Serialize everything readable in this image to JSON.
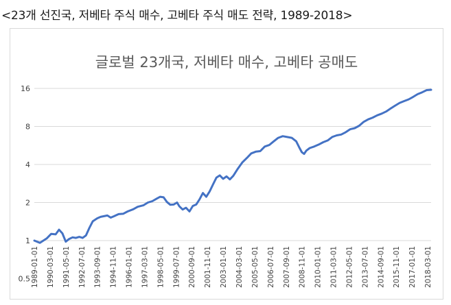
{
  "caption": "<23개 선진국, 저베타 주식 매수, 고베타 주식 매도 전략, 1989-2018>",
  "chart_data": {
    "type": "line",
    "title": "글로벌 23개국, 저베타 매수, 고베타 공매도",
    "xlabel": "",
    "ylabel": "",
    "y_scale": "log2",
    "ylim": [
      0.5,
      16
    ],
    "y_ticks": [
      "16",
      "8",
      "4",
      "2",
      "1",
      "0.5"
    ],
    "x_ticks": [
      "1989-01-01",
      "1990-03-01",
      "1991-05-01",
      "1992-07-01",
      "1993-09-01",
      "1994-11-01",
      "1996-01-01",
      "1997-03-01",
      "1998-05-01",
      "1999-07-01",
      "2000-09-01",
      "2001-11-01",
      "2003-01-01",
      "2004-03-01",
      "2005-05-01",
      "2006-07-01",
      "2007-09-01",
      "2008-11-01",
      "2010-01-01",
      "2011-03-01",
      "2012-05-01",
      "2013-07-01",
      "2014-09-01",
      "2015-11-01",
      "2017-01-01",
      "2018-03-01"
    ],
    "grid": true,
    "series": [
      {
        "color": "#4472c4",
        "points": [
          [
            "1989-01",
            1.0
          ],
          [
            "1989-06",
            0.96
          ],
          [
            "1989-12",
            1.04
          ],
          [
            "1990-04",
            1.13
          ],
          [
            "1990-08",
            1.12
          ],
          [
            "1990-11",
            1.22
          ],
          [
            "1991-02",
            1.14
          ],
          [
            "1991-05",
            0.98
          ],
          [
            "1991-08",
            1.03
          ],
          [
            "1991-11",
            1.06
          ],
          [
            "1992-02",
            1.05
          ],
          [
            "1992-05",
            1.07
          ],
          [
            "1992-08",
            1.05
          ],
          [
            "1992-11",
            1.1
          ],
          [
            "1993-02",
            1.26
          ],
          [
            "1993-05",
            1.42
          ],
          [
            "1993-09",
            1.5
          ],
          [
            "1993-12",
            1.54
          ],
          [
            "1994-03",
            1.56
          ],
          [
            "1994-06",
            1.58
          ],
          [
            "1994-09",
            1.52
          ],
          [
            "1994-12",
            1.56
          ],
          [
            "1995-04",
            1.62
          ],
          [
            "1995-08",
            1.63
          ],
          [
            "1995-12",
            1.7
          ],
          [
            "1996-05",
            1.77
          ],
          [
            "1996-09",
            1.85
          ],
          [
            "1997-02",
            1.9
          ],
          [
            "1997-06",
            2.0
          ],
          [
            "1997-10",
            2.05
          ],
          [
            "1998-02",
            2.15
          ],
          [
            "1998-05",
            2.22
          ],
          [
            "1998-08",
            2.2
          ],
          [
            "1998-11",
            2.02
          ],
          [
            "1999-02",
            1.92
          ],
          [
            "1999-05",
            1.93
          ],
          [
            "1999-08",
            2.0
          ],
          [
            "1999-10",
            1.87
          ],
          [
            "2000-01",
            1.76
          ],
          [
            "2000-04",
            1.82
          ],
          [
            "2000-07",
            1.7
          ],
          [
            "2000-10",
            1.88
          ],
          [
            "2001-01",
            1.93
          ],
          [
            "2001-04",
            2.12
          ],
          [
            "2001-07",
            2.38
          ],
          [
            "2001-10",
            2.22
          ],
          [
            "2002-01",
            2.45
          ],
          [
            "2002-04",
            2.78
          ],
          [
            "2002-07",
            3.15
          ],
          [
            "2002-10",
            3.28
          ],
          [
            "2003-01",
            3.08
          ],
          [
            "2003-04",
            3.22
          ],
          [
            "2003-07",
            3.05
          ],
          [
            "2003-10",
            3.25
          ],
          [
            "2004-02",
            3.7
          ],
          [
            "2004-06",
            4.15
          ],
          [
            "2004-10",
            4.5
          ],
          [
            "2005-02",
            4.9
          ],
          [
            "2005-06",
            5.05
          ],
          [
            "2005-10",
            5.1
          ],
          [
            "2006-02",
            5.55
          ],
          [
            "2006-06",
            5.7
          ],
          [
            "2006-10",
            6.1
          ],
          [
            "2007-02",
            6.5
          ],
          [
            "2007-06",
            6.7
          ],
          [
            "2007-10",
            6.6
          ],
          [
            "2008-02",
            6.5
          ],
          [
            "2008-06",
            6.1
          ],
          [
            "2008-09",
            5.4
          ],
          [
            "2008-11",
            5.0
          ],
          [
            "2009-01",
            4.85
          ],
          [
            "2009-03",
            5.15
          ],
          [
            "2009-06",
            5.4
          ],
          [
            "2009-10",
            5.55
          ],
          [
            "2010-02",
            5.75
          ],
          [
            "2010-06",
            6.0
          ],
          [
            "2010-10",
            6.2
          ],
          [
            "2011-02",
            6.6
          ],
          [
            "2011-06",
            6.8
          ],
          [
            "2011-10",
            6.9
          ],
          [
            "2012-02",
            7.2
          ],
          [
            "2012-06",
            7.6
          ],
          [
            "2012-10",
            7.75
          ],
          [
            "2013-02",
            8.1
          ],
          [
            "2013-06",
            8.7
          ],
          [
            "2013-10",
            9.1
          ],
          [
            "2014-02",
            9.4
          ],
          [
            "2014-06",
            9.8
          ],
          [
            "2014-10",
            10.1
          ],
          [
            "2015-02",
            10.5
          ],
          [
            "2015-06",
            11.1
          ],
          [
            "2015-10",
            11.7
          ],
          [
            "2016-02",
            12.3
          ],
          [
            "2016-06",
            12.7
          ],
          [
            "2016-10",
            13.1
          ],
          [
            "2017-02",
            13.7
          ],
          [
            "2017-06",
            14.4
          ],
          [
            "2017-10",
            14.9
          ],
          [
            "2018-02",
            15.5
          ],
          [
            "2018-06",
            15.6
          ]
        ]
      }
    ]
  }
}
